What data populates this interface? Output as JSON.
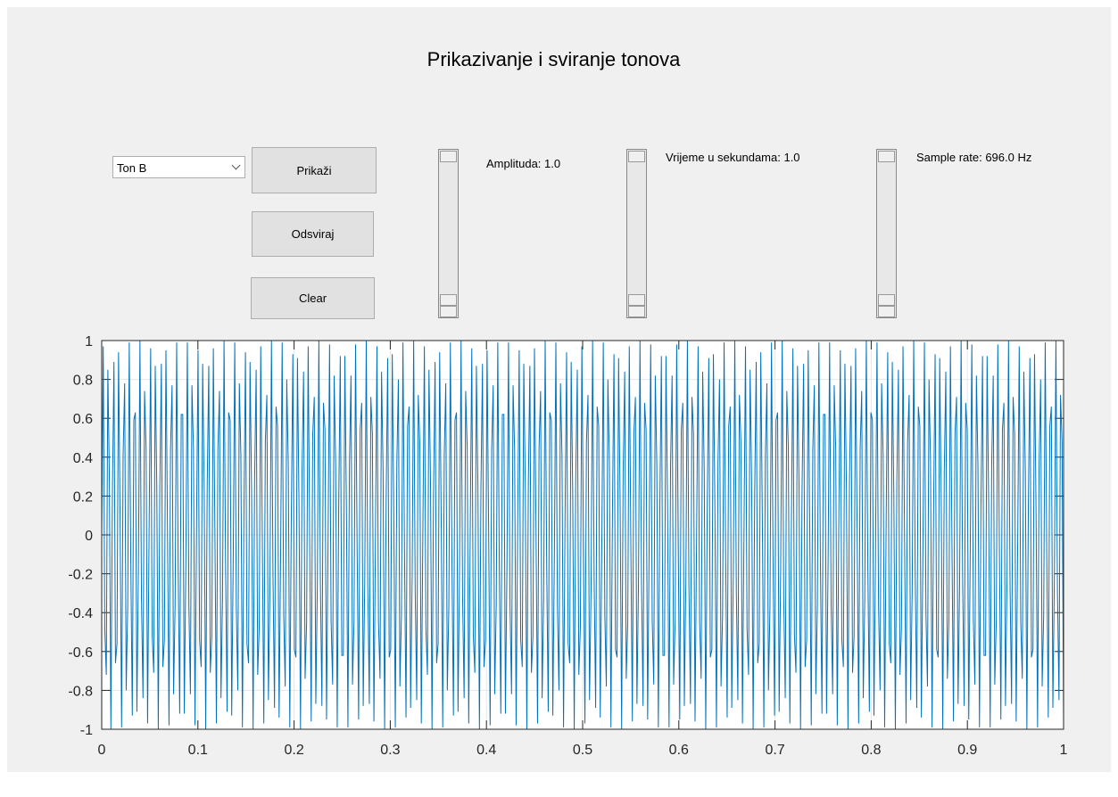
{
  "title": "Prikazivanje i sviranje tonova",
  "controls": {
    "dropdown": "Ton B",
    "buttons": [
      "Prikaži",
      "Odsviraj",
      "Clear"
    ],
    "slider_labels": [
      "Amplituda: 1.0",
      "Vrijeme u sekundama: 1.0",
      "Sample rate: 696.0 Hz"
    ]
  },
  "chart_data": {
    "type": "line",
    "color": "#0072bd",
    "grid": true,
    "xlim": [
      0,
      1
    ],
    "ylim": [
      -1,
      1
    ],
    "xticks": [
      0,
      0.1,
      0.2,
      0.3,
      0.4,
      0.5,
      0.6,
      0.7,
      0.8,
      0.9,
      1
    ],
    "yticks": [
      -1,
      -0.8,
      -0.6,
      -0.4,
      -0.2,
      0,
      0.2,
      0.4,
      0.6,
      0.8,
      1
    ],
    "values": [
      0,
      0.97,
      -0.48,
      -0.72,
      0.85,
      0.29,
      -1,
      0.21,
      0.89,
      -0.66,
      -0.56,
      0.94,
      0.09,
      -0.99,
      0.41,
      0.78,
      -0.8,
      -0.37,
      0.99,
      -0.12,
      -0.93,
      0.59,
      0.63,
      -0.91,
      -0.17,
      1,
      -0.33,
      -0.84,
      0.74,
      0.45,
      -0.97,
      0.03,
      0.96,
      -0.52,
      -0.71,
      0.87,
      0.26,
      -1,
      0.24,
      0.88,
      -0.68,
      -0.54,
      0.95,
      0.05,
      -0.98,
      0.44,
      0.77,
      -0.82,
      -0.36,
      0.99,
      -0.16,
      -0.92,
      0.62,
      0.62,
      -0.92,
      -0.16,
      0.99,
      -0.36,
      -0.82,
      0.77,
      0.44,
      -0.98,
      0.05,
      0.95,
      -0.54,
      -0.68,
      0.88,
      0.24,
      -1,
      0.26,
      0.87,
      -0.71,
      -0.52,
      0.96,
      0.03,
      -0.97,
      0.45,
      0.74,
      -0.84,
      -0.33,
      1,
      -0.17,
      -0.91,
      0.63,
      0.59,
      -0.93,
      -0.12,
      0.99,
      -0.37,
      -0.8,
      0.78,
      0.41,
      -0.99,
      0.09,
      0.94,
      -0.56,
      -0.66,
      0.89,
      0.21,
      -1,
      0.29,
      0.85,
      -0.72,
      -0.48,
      0.97,
      0,
      -0.97,
      0.48,
      0.72,
      -0.85,
      -0.29,
      1,
      -0.21,
      -0.89,
      0.66,
      0.56,
      -0.94,
      -0.09,
      0.99,
      -0.41,
      -0.78,
      0.8,
      0.37,
      -0.99,
      0.12,
      0.93,
      -0.59,
      -0.63,
      0.91,
      0.17,
      -1,
      0.33,
      0.84,
      -0.74,
      -0.45,
      0.97,
      -0.03,
      -0.96,
      0.52,
      0.71,
      -0.87,
      -0.26,
      1,
      -0.24,
      -0.88,
      0.68,
      0.54,
      -0.95,
      -0.05,
      0.98,
      -0.44,
      -0.77,
      0.82,
      0.36,
      -0.99,
      0.16,
      0.92,
      -0.62,
      -0.62,
      0.92,
      0.16,
      -0.99,
      0.36,
      0.82,
      -0.77,
      -0.44,
      0.98,
      -0.05,
      -0.95,
      0.54,
      0.68,
      -0.88,
      -0.24,
      1,
      -0.26,
      -0.87,
      0.71,
      0.52,
      -0.96,
      -0.03,
      0.97,
      -0.45,
      -0.74,
      0.84,
      0.33,
      -1,
      0.17,
      0.91,
      -0.63,
      -0.59,
      0.93,
      0.12,
      -0.99,
      0.37,
      0.8,
      -0.78,
      -0.41,
      0.99,
      -0.09,
      -0.94,
      0.56,
      0.66,
      -0.89,
      -0.21,
      1,
      -0.29,
      -0.85,
      0.72,
      0.48,
      -0.97,
      0,
      0.97,
      -0.48,
      -0.72,
      0.85,
      0.29,
      -1,
      0.21,
      0.89,
      -0.66,
      -0.56,
      0.94,
      0.09,
      -0.99,
      0.41,
      0.78,
      -0.8,
      -0.37,
      0.99,
      -0.12,
      -0.93,
      0.59,
      0.63,
      -0.91,
      -0.17,
      1,
      -0.33,
      -0.84,
      0.74,
      0.45,
      -0.97,
      0.03,
      0.96,
      -0.52,
      -0.71,
      0.87,
      0.26,
      -1,
      0.24,
      0.88,
      -0.68,
      -0.54,
      0.95,
      0.05,
      -0.98,
      0.44,
      0.77,
      -0.82,
      -0.36,
      0.99,
      -0.16,
      -0.92,
      0.62,
      0.62,
      -0.92,
      -0.16,
      0.99,
      -0.36,
      -0.82,
      0.77,
      0.44,
      -0.98,
      0.05,
      0.95,
      -0.54,
      -0.68,
      0.88,
      0.24,
      -1,
      0.26,
      0.87,
      -0.71,
      -0.52,
      0.96,
      0.03,
      -0.97,
      0.45,
      0.74,
      -0.84,
      -0.33,
      1,
      -0.17,
      -0.91,
      0.63,
      0.59,
      -0.93,
      -0.12,
      0.99,
      -0.37,
      -0.8,
      0.78,
      0.41,
      -0.99,
      0.09,
      0.94,
      -0.56,
      -0.66,
      0.89,
      0.21,
      -1,
      0.29,
      0.85,
      -0.72,
      -0.48,
      0.97,
      0,
      -0.97,
      0.48,
      0.72,
      -0.85,
      -0.29,
      1,
      -0.21,
      -0.89,
      0.66,
      0.56,
      -0.94,
      -0.09,
      0.99,
      -0.41,
      -0.78,
      0.8,
      0.37,
      -0.99,
      0.12,
      0.93,
      -0.59,
      -0.63,
      0.91,
      0.17,
      -1,
      0.33,
      0.84,
      -0.74,
      -0.45,
      0.97,
      -0.03,
      -0.96,
      0.52,
      0.71,
      -0.87,
      -0.26,
      1,
      -0.24,
      -0.88,
      0.68,
      0.54,
      -0.95,
      -0.05,
      0.98,
      -0.44,
      -0.77,
      0.82,
      0.36,
      -0.99,
      0.16,
      0.92,
      -0.62,
      -0.62,
      0.92,
      0.16,
      -0.99,
      0.36,
      0.82,
      -0.77,
      -0.44,
      0.98,
      -0.05,
      -0.95,
      0.54,
      0.68,
      -0.88,
      -0.24,
      1,
      -0.26,
      -0.87,
      0.71,
      0.52,
      -0.96,
      -0.03,
      0.97,
      -0.45,
      -0.74,
      0.84,
      0.33,
      -1,
      0.17,
      0.91,
      -0.63,
      -0.59,
      0.93,
      0.12,
      -0.99,
      0.37,
      0.8,
      -0.78,
      -0.41,
      0.99,
      -0.09,
      -0.94,
      0.56,
      0.66,
      -0.89,
      -0.21,
      1,
      -0.29,
      -0.85,
      0.72,
      0.48,
      -0.97,
      0,
      0.97,
      -0.48,
      -0.72,
      0.85,
      0.29,
      -1,
      0.21,
      0.89,
      -0.66,
      -0.56,
      0.94,
      0.09,
      -0.99,
      0.41,
      0.78,
      -0.8,
      -0.37,
      0.99,
      -0.12,
      -0.93,
      0.59,
      0.63,
      -0.91,
      -0.17,
      1,
      -0.33,
      -0.84,
      0.74,
      0.45,
      -0.97,
      0.03,
      0.96,
      -0.52,
      -0.71,
      0.87,
      0.26,
      -1,
      0.24,
      0.88,
      -0.68,
      -0.54,
      0.95,
      0.05,
      -0.98,
      0.44,
      0.77,
      -0.82,
      -0.36,
      0.99,
      -0.16,
      -0.92,
      0.62,
      0.62,
      -0.92,
      -0.16,
      0.99,
      -0.36,
      -0.82,
      0.77,
      0.44,
      -0.98,
      0.05,
      0.95,
      -0.54,
      -0.68,
      0.88,
      0.24,
      -1,
      0.26,
      0.87,
      -0.71,
      -0.52,
      0.96,
      0.03,
      -0.97,
      0.45,
      0.74,
      -0.84,
      -0.33,
      1,
      -0.17,
      -0.91,
      0.63,
      0.59,
      -0.93,
      -0.12,
      0.99,
      -0.37,
      -0.8,
      0.78,
      0.41,
      -0.99,
      0.09,
      0.94,
      -0.56,
      -0.66,
      0.89,
      0.21,
      -1,
      0.29,
      0.85,
      -0.72,
      -0.48,
      0.97,
      0,
      -0.97,
      0.48,
      0.72,
      -0.85,
      -0.29,
      1,
      -0.21,
      -0.89,
      0.66,
      0.56,
      -0.94,
      -0.09,
      0.99,
      -0.41,
      -0.78,
      0.8,
      0.37,
      -0.99,
      0.12,
      0.93,
      -0.59,
      -0.63,
      0.91,
      0.17,
      -1,
      0.33,
      0.84,
      -0.74,
      -0.45,
      0.97,
      -0.03,
      -0.96,
      0.52,
      0.71,
      -0.87,
      -0.26,
      1,
      -0.24,
      -0.88,
      0.68,
      0.54,
      -0.95,
      -0.05,
      0.98,
      -0.44,
      -0.77,
      0.82,
      0.36,
      -0.99,
      0.16,
      0.92,
      -0.62,
      -0.62,
      0.92,
      0.16,
      -0.99,
      0.36,
      0.82,
      -0.77,
      -0.44,
      0.98,
      -0.05,
      -0.95,
      0.54,
      0.68,
      -0.88,
      -0.24,
      1,
      -0.26,
      -0.87,
      0.71,
      0.52,
      -0.96,
      -0.03,
      0.97,
      -0.45,
      -0.74,
      0.84,
      0.33,
      -1,
      0.17,
      0.91,
      -0.63,
      -0.59,
      0.93,
      0.12,
      -0.99,
      0.37,
      0.8,
      -0.78,
      -0.41,
      0.99,
      -0.09,
      -0.94,
      0.56,
      0.66,
      -0.89,
      -0.21,
      1,
      -0.29,
      -0.85,
      0.72,
      0.48,
      -0.97
    ]
  }
}
